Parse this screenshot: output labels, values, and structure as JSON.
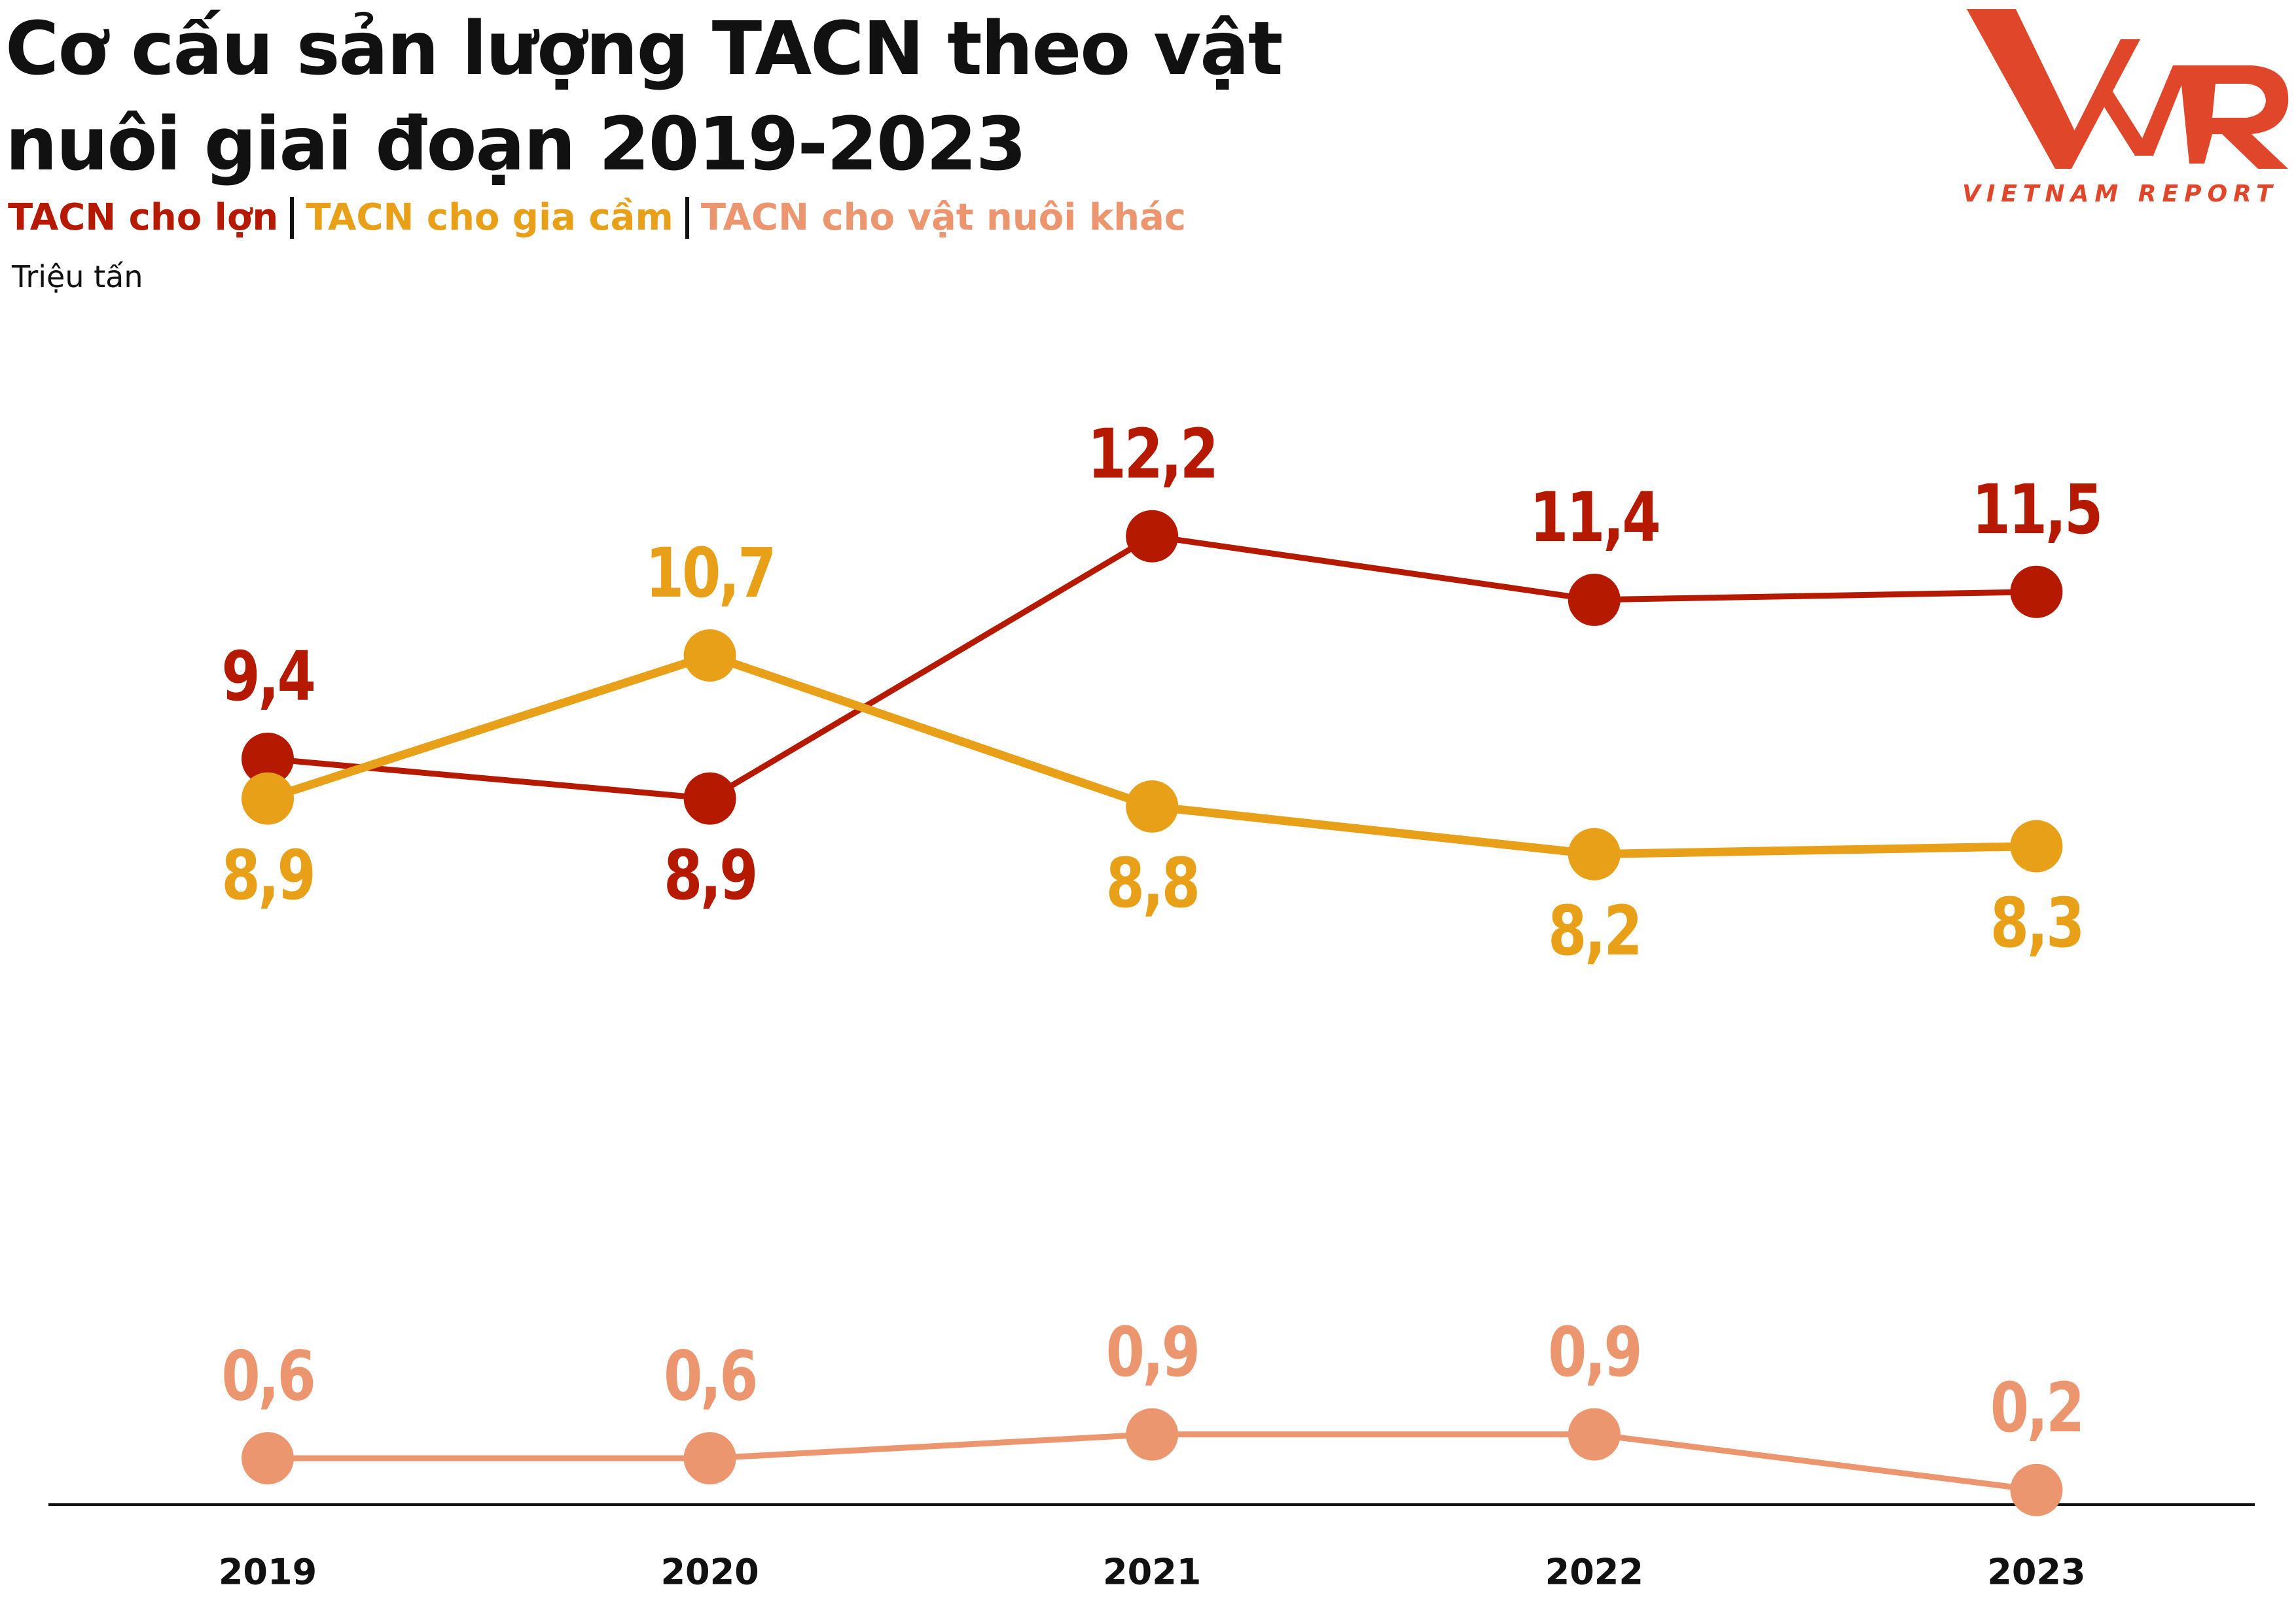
{
  "chart_data": {
    "type": "line",
    "title": "Cơ cấu sản lượng TACN theo vật nuôi giai đoạn 2019-2023",
    "unit_label": "Triệu tấn",
    "categories": [
      "2019",
      "2020",
      "2021",
      "2022",
      "2023"
    ],
    "series": [
      {
        "name": "TACN cho lợn",
        "color": "#b51a00",
        "values": [
          9.4,
          8.9,
          12.2,
          11.4,
          11.5
        ],
        "value_labels": [
          "9,4",
          "8,9",
          "12,2",
          "11,4",
          "11,5"
        ]
      },
      {
        "name": "TACN cho gia cầm",
        "color": "#e8a019",
        "values": [
          8.9,
          10.7,
          8.8,
          8.2,
          8.3
        ],
        "value_labels": [
          "8,9",
          "10,7",
          "8,8",
          "8,2",
          "8,3"
        ]
      },
      {
        "name": "TACN cho vật nuôi khác",
        "color": "#ec9670",
        "values": [
          0.6,
          0.6,
          0.9,
          0.9,
          0.2
        ],
        "value_labels": [
          "0,6",
          "0,6",
          "0,9",
          "0,9",
          "0,2"
        ]
      }
    ]
  },
  "logo": {
    "caption": "VIETNAM REPORT"
  }
}
